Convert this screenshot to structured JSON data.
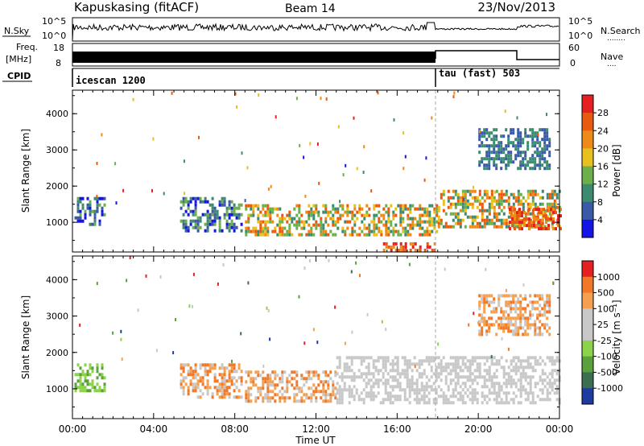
{
  "header": {
    "station": "Kapuskasing (fitACF)",
    "beam": "Beam 14",
    "date": "23/Nov/2013"
  },
  "nsky_panel": {
    "left_label": "N.Sky",
    "right_label": "N.Search",
    "right_sublabel": "........",
    "ticks_left": [
      "10^5",
      "10^0"
    ],
    "ticks_right": [
      "10^5",
      "10^0"
    ]
  },
  "freq_panel": {
    "left_label_1": "Freq.",
    "left_label_2": "[MHz]",
    "right_label": "Nave",
    "right_sublabel": "....",
    "ticks_left": [
      "18",
      "8"
    ],
    "ticks_right": [
      "60",
      "0"
    ]
  },
  "cpid_panel": {
    "label": "CPID",
    "modes": [
      {
        "name": "icescan 1200",
        "start_hour": 0
      },
      {
        "name": "tau (fast) 503",
        "start_hour": 18
      }
    ]
  },
  "chart_data": [
    {
      "type": "heatmap",
      "panel": "power",
      "ylabel": "Slant Range [km]",
      "ylim": [
        180,
        4650
      ],
      "xlim_hours": [
        0,
        24
      ],
      "y_ticks": [
        "1000",
        "2000",
        "3000",
        "4000"
      ],
      "colorbar": {
        "label": "Power [dB]",
        "ticks": [
          "4",
          "8",
          "12",
          "16",
          "20",
          "24",
          "28"
        ],
        "colors": [
          "#1414e6",
          "#3a5aa8",
          "#3c8a70",
          "#6bb04a",
          "#e8c020",
          "#ee8a18",
          "#e85a10",
          "#e62020"
        ]
      },
      "regions": [
        {
          "t0": 0.1,
          "t1": 1.6,
          "r0": 950,
          "r1": 1700,
          "level": "mid"
        },
        {
          "t0": 5.3,
          "t1": 8.3,
          "r0": 800,
          "r1": 1700,
          "level": "mid"
        },
        {
          "t0": 8.5,
          "t1": 18.0,
          "r0": 650,
          "r1": 1500,
          "level": "high"
        },
        {
          "t0": 15.3,
          "t1": 18.0,
          "r0": 250,
          "r1": 450,
          "level": "max"
        },
        {
          "t0": 18.0,
          "t1": 24.0,
          "r0": 850,
          "r1": 1900,
          "level": "high"
        },
        {
          "t0": 21.5,
          "t1": 24.0,
          "r0": 800,
          "r1": 1400,
          "level": "max"
        },
        {
          "t0": 20.0,
          "t1": 23.5,
          "r0": 2500,
          "r1": 3600,
          "level": "low"
        }
      ]
    },
    {
      "type": "heatmap",
      "panel": "velocity",
      "ylabel": "Slant Range [km]",
      "xlabel": "Time UT",
      "ylim": [
        180,
        4650
      ],
      "xlim_hours": [
        0,
        24
      ],
      "x_ticks": [
        "00:00",
        "04:00",
        "08:00",
        "12:00",
        "16:00",
        "20:00",
        "00:00"
      ],
      "y_ticks": [
        "1000",
        "2000",
        "3000",
        "4000"
      ],
      "colorbar": {
        "label": "Velocity [m s⁻¹]",
        "ticks": [
          "1000",
          "500",
          "100",
          "25",
          "-25",
          "-100",
          "-500",
          "-1000"
        ],
        "colors": [
          "#1e3ca0",
          "#3c6e50",
          "#5aa03c",
          "#8cd24a",
          "#c8c8c8",
          "#c8c8c8",
          "#f5a050",
          "#f07828",
          "#e62020"
        ]
      },
      "regions": [
        {
          "t0": 0.1,
          "t1": 1.6,
          "r0": 950,
          "r1": 1700,
          "level": "green"
        },
        {
          "t0": 5.3,
          "t1": 8.3,
          "r0": 800,
          "r1": 1700,
          "level": "orange"
        },
        {
          "t0": 8.5,
          "t1": 13.0,
          "r0": 650,
          "r1": 1500,
          "level": "orange"
        },
        {
          "t0": 13.0,
          "t1": 24.0,
          "r0": 650,
          "r1": 1900,
          "level": "grey"
        },
        {
          "t0": 20.0,
          "t1": 23.5,
          "r0": 2500,
          "r1": 3600,
          "level": "orange"
        }
      ]
    }
  ]
}
